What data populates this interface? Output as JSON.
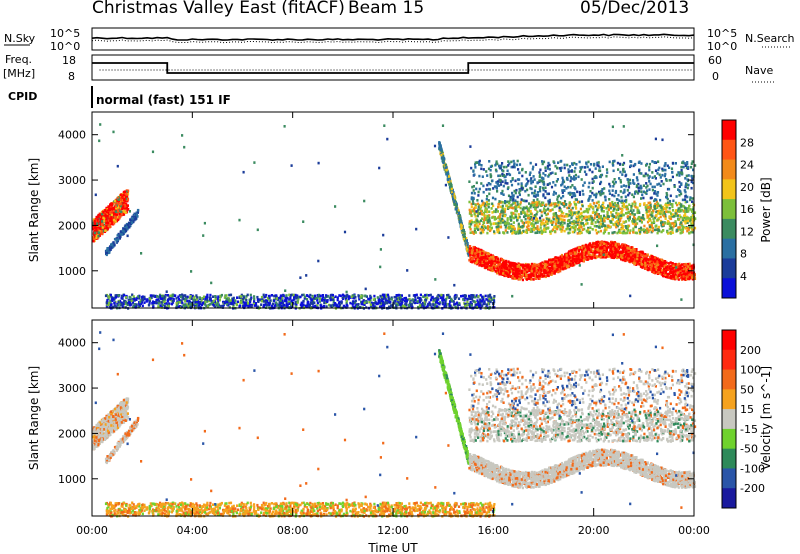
{
  "header": {
    "station": "Christmas Valley East (fitACF)",
    "beam": "Beam 15",
    "date": "05/Dec/2013"
  },
  "left_labels": {
    "nsky": "N.Sky",
    "freq": "Freq.",
    "freq_unit": "[MHz]",
    "cpid": "CPID"
  },
  "right_labels": {
    "nsearch": "N.Search",
    "nave": "Nave"
  },
  "cpid_text": "normal (fast) 151 IF",
  "noise_axis": {
    "left_ticks": [
      "10^5",
      "10^0"
    ],
    "right_ticks": [
      "10^5",
      "10^0"
    ]
  },
  "freq_axis": {
    "left_ticks": [
      "18",
      "8"
    ],
    "right_ticks": [
      "60",
      "0"
    ]
  },
  "colors": {
    "power_scale": [
      "#0b10d8",
      "#1b3c9a",
      "#2a6fa2",
      "#3b8b60",
      "#7cbf3a",
      "#f2c41a",
      "#f28a1a",
      "#ff5515",
      "#ff0000"
    ],
    "velocity_scale": [
      "#1a1a9e",
      "#2a55a8",
      "#2e8a5a",
      "#6fd22e",
      "#c8c8c0",
      "#f5a21e",
      "#f26a1a",
      "#ff2a10",
      "#ff0000"
    ]
  },
  "chart_data": [
    {
      "type": "heatmap",
      "panel": "power",
      "xlabel": "",
      "ylabel": "Slant Range [km]",
      "x_range": [
        "00:00",
        "24:00"
      ],
      "ylim": [
        180,
        4500
      ],
      "y_ticks": [
        "4000",
        "3000",
        "2000",
        "1000"
      ],
      "colorbar_label": "Power [dB]",
      "colorbar_ticks": [
        "28",
        "24",
        "20",
        "16",
        "12",
        "8",
        "4"
      ]
    },
    {
      "type": "heatmap",
      "panel": "velocity",
      "xlabel": "Time UT",
      "ylabel": "Slant Range [km]",
      "x_range": [
        "00:00",
        "24:00"
      ],
      "ylim": [
        180,
        4500
      ],
      "x_ticks": [
        "00:00",
        "04:00",
        "08:00",
        "12:00",
        "16:00",
        "20:00",
        "00:00"
      ],
      "y_ticks": [
        "4000",
        "3000",
        "2000",
        "1000"
      ],
      "colorbar_label": "Velocity [m s^-1]",
      "colorbar_ticks": [
        "200",
        "100",
        "50",
        "15",
        "-15",
        "-50",
        "-100",
        "-200"
      ]
    }
  ]
}
